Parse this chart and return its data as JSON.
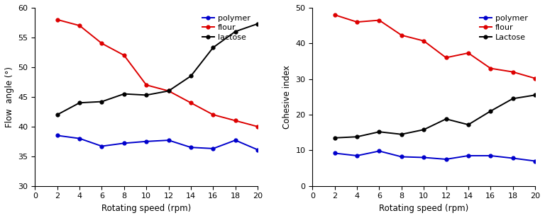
{
  "x": [
    2,
    4,
    6,
    8,
    10,
    12,
    14,
    16,
    18,
    20
  ],
  "flow_polymer": [
    38.5,
    38.0,
    36.7,
    37.2,
    37.5,
    37.7,
    36.5,
    36.3,
    37.7,
    36.1
  ],
  "flow_flour": [
    58.0,
    57.0,
    54.0,
    52.0,
    47.0,
    46.0,
    44.0,
    42.0,
    41.0,
    40.0
  ],
  "flow_lactose": [
    42.0,
    44.0,
    44.2,
    45.5,
    45.3,
    46.0,
    48.5,
    53.3,
    56.0,
    57.3
  ],
  "cohesive_polymer": [
    9.2,
    8.5,
    9.8,
    8.2,
    8.0,
    7.5,
    8.5,
    8.5,
    7.8,
    7.0
  ],
  "cohesive_flour": [
    48.0,
    46.0,
    46.5,
    42.3,
    40.7,
    36.0,
    37.3,
    33.0,
    32.0,
    30.2
  ],
  "cohesive_lactose": [
    13.5,
    13.8,
    15.2,
    14.5,
    15.8,
    18.8,
    17.2,
    21.0,
    24.5,
    25.5
  ],
  "color_polymer": "#0000cc",
  "color_flour": "#dd0000",
  "color_lactose": "#000000",
  "ylabel_A": "Flow  angle (°)",
  "ylabel_B": "Cohesive index",
  "xlabel": "Rotating speed (rpm)",
  "ylim_A": [
    30,
    60
  ],
  "ylim_B": [
    0,
    50
  ],
  "yticks_A": [
    30,
    35,
    40,
    45,
    50,
    55,
    60
  ],
  "yticks_B": [
    0,
    10,
    20,
    30,
    40,
    50
  ],
  "xlim": [
    0,
    20
  ],
  "xticks": [
    0,
    2,
    4,
    6,
    8,
    10,
    12,
    14,
    16,
    18,
    20
  ],
  "legend_labels_A": [
    "polymer",
    "flour",
    "lactose"
  ],
  "legend_labels_B": [
    "polymer",
    "flour",
    "Lactose"
  ],
  "tick_fontsize": 8,
  "label_fontsize": 8.5,
  "legend_fontsize": 8,
  "linewidth": 1.4,
  "markersize": 3.5
}
